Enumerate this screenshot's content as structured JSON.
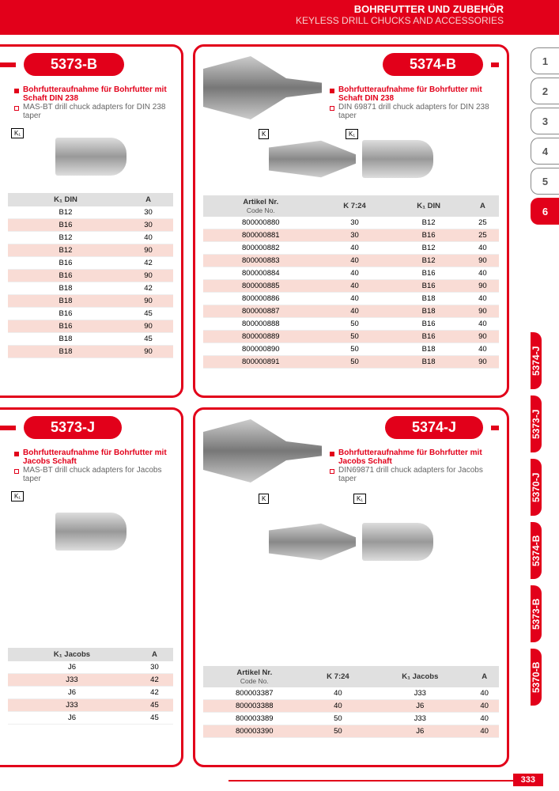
{
  "header": {
    "de": "BOHRFUTTER UND ZUBEHÖR",
    "en": "KEYLESS DRILL CHUCKS AND ACCESSORIES"
  },
  "page_number": "333",
  "section_tabs": [
    "1",
    "2",
    "3",
    "4",
    "5",
    "6"
  ],
  "active_section": "6",
  "bookmark_tabs": [
    "5374-J",
    "5373-J",
    "5370-J",
    "5374-B",
    "5373-B",
    "5370-B"
  ],
  "cards": {
    "c5373B": {
      "code": "5373-B",
      "title_de": "Bohrfutteraufnahme für Bohrfutter mit Schaft DIN 238",
      "title_en": "MAS-BT drill chuck adapters for DIN 238 taper",
      "cols": [
        "K₁ DIN",
        "A"
      ],
      "rows": [
        [
          "B12",
          "30"
        ],
        [
          "B16",
          "30"
        ],
        [
          "B12",
          "40"
        ],
        [
          "B12",
          "90"
        ],
        [
          "B16",
          "42"
        ],
        [
          "B16",
          "90"
        ],
        [
          "B18",
          "42"
        ],
        [
          "B18",
          "90"
        ],
        [
          "B16",
          "45"
        ],
        [
          "B16",
          "90"
        ],
        [
          "B18",
          "45"
        ],
        [
          "B18",
          "90"
        ]
      ]
    },
    "c5374B": {
      "code": "5374-B",
      "title_de": "Bohrfutteraufnahme für Bohrfutter mit Schaft DIN 238",
      "title_en": "DIN 69871 drill chuck adapters for DIN 238 taper",
      "cols": [
        "Artikel Nr.",
        "K 7:24",
        "K₁ DIN",
        "A"
      ],
      "col_sub": "Code No.",
      "rows": [
        [
          "800000880",
          "30",
          "B12",
          "25"
        ],
        [
          "800000881",
          "30",
          "B16",
          "25"
        ],
        [
          "800000882",
          "40",
          "B12",
          "40"
        ],
        [
          "800000883",
          "40",
          "B12",
          "90"
        ],
        [
          "800000884",
          "40",
          "B16",
          "40"
        ],
        [
          "800000885",
          "40",
          "B16",
          "90"
        ],
        [
          "800000886",
          "40",
          "B18",
          "40"
        ],
        [
          "800000887",
          "40",
          "B18",
          "90"
        ],
        [
          "800000888",
          "50",
          "B16",
          "40"
        ],
        [
          "800000889",
          "50",
          "B16",
          "90"
        ],
        [
          "800000890",
          "50",
          "B18",
          "40"
        ],
        [
          "800000891",
          "50",
          "B18",
          "90"
        ]
      ]
    },
    "c5373J": {
      "code": "5373-J",
      "title_de": "Bohrfutteraufnahme für Bohrfutter mit Jacobs Schaft",
      "title_en": "MAS-BT drill chuck adapters for Jacobs taper",
      "cols": [
        "K₁ Jacobs",
        "A"
      ],
      "rows": [
        [
          "J6",
          "30"
        ],
        [
          "J33",
          "42"
        ],
        [
          "J6",
          "42"
        ],
        [
          "J33",
          "45"
        ],
        [
          "J6",
          "45"
        ]
      ]
    },
    "c5374J": {
      "code": "5374-J",
      "title_de": "Bohrfutteraufnahme für Bohrfutter mit Jacobs Schaft",
      "title_en": "DIN69871 drill chuck adapters for Jacobs taper",
      "cols": [
        "Artikel Nr.",
        "K 7:24",
        "K₁ Jacobs",
        "A"
      ],
      "col_sub": "Code No.",
      "rows": [
        [
          "800003387",
          "40",
          "J33",
          "40"
        ],
        [
          "800003388",
          "40",
          "J6",
          "40"
        ],
        [
          "800003389",
          "50",
          "J33",
          "40"
        ],
        [
          "800003390",
          "50",
          "J6",
          "40"
        ]
      ]
    }
  }
}
